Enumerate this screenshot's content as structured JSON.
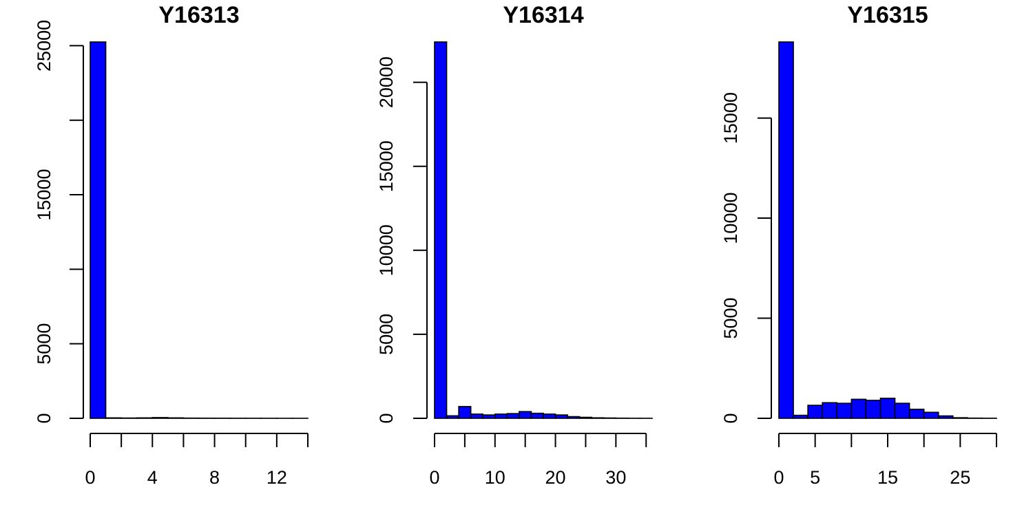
{
  "chart_data": [
    {
      "type": "bar",
      "title": "Y16313",
      "xlabel": "",
      "ylabel": "",
      "bin_edges": [
        0,
        1,
        2,
        3,
        4,
        5,
        6,
        7,
        8,
        9,
        10,
        11,
        12,
        13,
        14
      ],
      "values": [
        25250,
        30,
        20,
        30,
        50,
        30,
        15,
        10,
        8,
        6,
        5,
        4,
        3,
        2
      ],
      "xlim": [
        0,
        14
      ],
      "ylim": [
        0,
        25250
      ],
      "xticks": [
        0,
        2,
        4,
        6,
        8,
        10,
        12,
        14
      ],
      "xtick_labels": [
        "0",
        "",
        "4",
        "",
        "8",
        "",
        "12",
        ""
      ],
      "yticks": [
        0,
        5000,
        10000,
        15000,
        20000,
        25000
      ],
      "ytick_labels": [
        "0",
        "5000",
        "",
        "15000",
        "",
        "25000"
      ],
      "bar_color": "#0000FF",
      "grid": false
    },
    {
      "type": "bar",
      "title": "Y16314",
      "xlabel": "",
      "ylabel": "",
      "bin_edges": [
        0,
        2,
        4,
        6,
        8,
        10,
        12,
        14,
        16,
        18,
        20,
        22,
        24,
        26,
        28,
        30,
        32,
        34,
        36
      ],
      "values": [
        22400,
        150,
        700,
        250,
        200,
        250,
        280,
        400,
        300,
        250,
        200,
        100,
        60,
        30,
        20,
        10,
        5,
        3
      ],
      "xlim": [
        0,
        36
      ],
      "ylim": [
        0,
        22400
      ],
      "xticks": [
        0,
        5,
        10,
        15,
        20,
        25,
        30,
        35
      ],
      "xtick_labels": [
        "0",
        "",
        "10",
        "",
        "20",
        "",
        "30",
        ""
      ],
      "yticks": [
        0,
        5000,
        10000,
        15000,
        20000
      ],
      "ytick_labels": [
        "0",
        "5000",
        "10000",
        "15000",
        "20000"
      ],
      "bar_color": "#0000FF",
      "grid": false
    },
    {
      "type": "bar",
      "title": "Y16315",
      "xlabel": "",
      "ylabel": "",
      "bin_edges": [
        0,
        2,
        4,
        6,
        8,
        10,
        12,
        14,
        16,
        18,
        20,
        22,
        24,
        26,
        28,
        30
      ],
      "values": [
        18800,
        150,
        650,
        780,
        750,
        950,
        900,
        1000,
        750,
        450,
        300,
        120,
        30,
        10,
        5
      ],
      "xlim": [
        0,
        30
      ],
      "ylim": [
        0,
        18800
      ],
      "xticks": [
        0,
        5,
        10,
        15,
        20,
        25,
        30
      ],
      "xtick_labels": [
        "0",
        "5",
        "",
        "15",
        "",
        "25",
        ""
      ],
      "yticks": [
        0,
        5000,
        10000,
        15000
      ],
      "ytick_labels": [
        "0",
        "5000",
        "10000",
        "15000"
      ],
      "bar_color": "#0000FF",
      "grid": false
    }
  ]
}
